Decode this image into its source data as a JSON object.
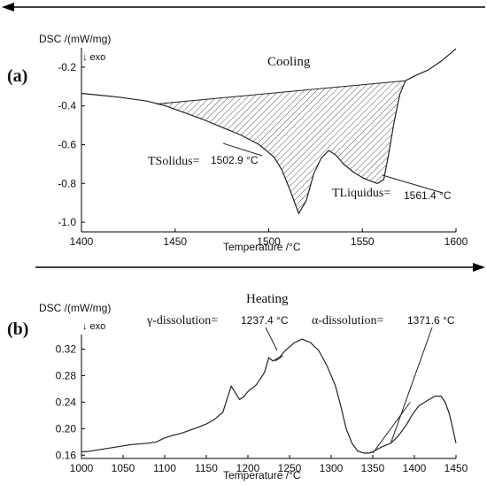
{
  "figure": {
    "panels": [
      {
        "id": "a",
        "label": "(a)",
        "title": "Cooling",
        "ylabel": "DSC /(mW/mg)",
        "exo_label": "↓ exo",
        "xlabel": "Temperature /°C",
        "direction": "right-to-left",
        "annotations": [
          {
            "name": "TSolidus=",
            "value": "1502.9 °C"
          },
          {
            "name": "TLiquidus=",
            "value": "1561.4 °C"
          }
        ]
      },
      {
        "id": "b",
        "label": "(b)",
        "title": "Heating",
        "ylabel": "DSC /(mW/mg)",
        "exo_label": "↓ exo",
        "xlabel": "Temperature /°C",
        "direction": "left-to-right",
        "annotations": [
          {
            "name": "γ-dissolution=",
            "value": "1237.4 °C"
          },
          {
            "name": "α-dissolution=",
            "value": "1371.6 °C"
          }
        ]
      }
    ]
  },
  "chart_data": [
    {
      "type": "line",
      "title": "Cooling",
      "xlabel": "Temperature /°C",
      "ylabel": "DSC /(mW/mg)",
      "xlim": [
        1400,
        1600
      ],
      "ylim": [
        -1.05,
        -0.1
      ],
      "xticks": [
        1400,
        1450,
        1500,
        1550,
        1600
      ],
      "yticks": [
        -1.0,
        -0.8,
        -0.6,
        -0.4,
        -0.2
      ],
      "ytick_labels": [
        "-1.0",
        "-0.8",
        "-0.6",
        "-0.4",
        "-0.2"
      ],
      "grid": false,
      "shaded_area": {
        "x_start": 1440,
        "x_end": 1573,
        "style": "hatched"
      },
      "baseline": [
        [
          1440,
          -0.39
        ],
        [
          1573,
          -0.27
        ]
      ],
      "series": [
        {
          "x": [
            1400,
            1420,
            1435,
            1445,
            1455,
            1465,
            1475,
            1485,
            1495,
            1502.9,
            1507,
            1512,
            1516,
            1520,
            1524,
            1528,
            1532,
            1536,
            1540,
            1545,
            1550,
            1555,
            1558,
            1561.4,
            1564,
            1567,
            1570,
            1573,
            1578,
            1585,
            1592,
            1600
          ],
          "y": [
            -0.335,
            -0.355,
            -0.375,
            -0.4,
            -0.435,
            -0.47,
            -0.51,
            -0.55,
            -0.6,
            -0.665,
            -0.73,
            -0.85,
            -0.955,
            -0.89,
            -0.75,
            -0.67,
            -0.63,
            -0.655,
            -0.7,
            -0.74,
            -0.77,
            -0.79,
            -0.8,
            -0.78,
            -0.65,
            -0.48,
            -0.34,
            -0.27,
            -0.245,
            -0.215,
            -0.17,
            -0.105
          ]
        }
      ]
    },
    {
      "type": "line",
      "title": "Heating",
      "xlabel": "Temperature /°C",
      "ylabel": "DSC /(mW/mg)",
      "xlim": [
        1000,
        1450
      ],
      "ylim": [
        0.155,
        0.342
      ],
      "xticks": [
        1000,
        1050,
        1100,
        1150,
        1200,
        1250,
        1300,
        1350,
        1400,
        1450
      ],
      "yticks": [
        0.16,
        0.2,
        0.24,
        0.28,
        0.32
      ],
      "ytick_labels": [
        "0.16",
        "0.20",
        "0.24",
        "0.28",
        "0.32"
      ],
      "grid": false,
      "tangent_lines": [
        {
          "from": [
            1233,
            0.302
          ],
          "to": [
            1242,
            0.31
          ]
        },
        {
          "from": [
            1350,
            0.163
          ],
          "to": [
            1395,
            0.24
          ]
        }
      ],
      "series": [
        {
          "x": [
            1000,
            1010,
            1020,
            1040,
            1060,
            1080,
            1090,
            1100,
            1110,
            1120,
            1140,
            1150,
            1160,
            1170,
            1175,
            1180,
            1185,
            1190,
            1195,
            1200,
            1210,
            1220,
            1225,
            1230,
            1237.4,
            1245,
            1255,
            1265,
            1275,
            1285,
            1295,
            1305,
            1312,
            1318,
            1325,
            1332,
            1340,
            1345,
            1350,
            1360,
            1371.6,
            1380,
            1390,
            1398,
            1405,
            1415,
            1425,
            1432,
            1437,
            1442,
            1447,
            1450
          ],
          "y": [
            0.165,
            0.166,
            0.168,
            0.172,
            0.176,
            0.178,
            0.18,
            0.186,
            0.19,
            0.193,
            0.202,
            0.207,
            0.214,
            0.225,
            0.245,
            0.264,
            0.254,
            0.244,
            0.248,
            0.256,
            0.266,
            0.285,
            0.307,
            0.302,
            0.307,
            0.318,
            0.329,
            0.335,
            0.33,
            0.318,
            0.295,
            0.265,
            0.232,
            0.2,
            0.178,
            0.166,
            0.163,
            0.163,
            0.165,
            0.172,
            0.178,
            0.188,
            0.205,
            0.222,
            0.234,
            0.242,
            0.249,
            0.249,
            0.24,
            0.222,
            0.195,
            0.178
          ]
        }
      ]
    }
  ]
}
